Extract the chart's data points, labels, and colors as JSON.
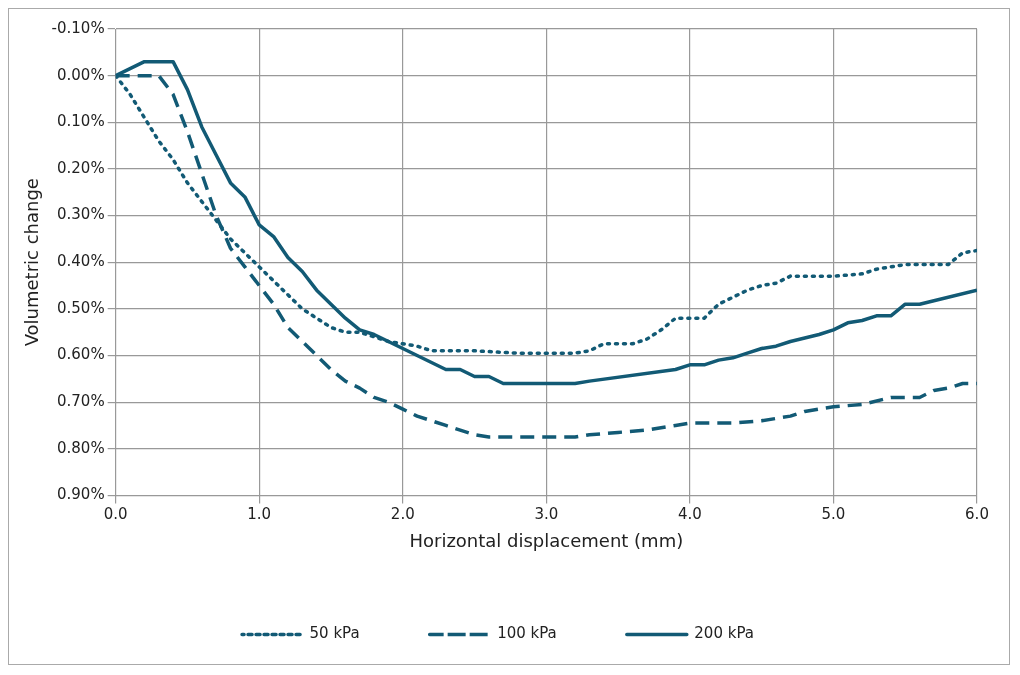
{
  "chart_data": {
    "type": "line",
    "xlabel": "Horizontal displacement (mm)",
    "ylabel": "Volumetric change",
    "xlim": [
      0,
      6
    ],
    "xticks": [
      {
        "value": 0,
        "label": "0.0"
      },
      {
        "value": 1,
        "label": "1.0"
      },
      {
        "value": 2,
        "label": "2.0"
      },
      {
        "value": 3,
        "label": "3.0"
      },
      {
        "value": 4,
        "label": "4.0"
      },
      {
        "value": 5,
        "label": "5.0"
      },
      {
        "value": 6,
        "label": "6.0"
      }
    ],
    "ylim": [
      0.9,
      -0.1
    ],
    "yticks": [
      {
        "value": -0.1,
        "label": "-0.10%"
      },
      {
        "value": 0,
        "label": "0.00%"
      },
      {
        "value": 0.1,
        "label": "0.10%"
      },
      {
        "value": 0.2,
        "label": "0.20%"
      },
      {
        "value": 0.3,
        "label": "0.30%"
      },
      {
        "value": 0.4,
        "label": "0.40%"
      },
      {
        "value": 0.5,
        "label": "0.50%"
      },
      {
        "value": 0.6,
        "label": "0.60%"
      },
      {
        "value": 0.7,
        "label": "0.70%"
      },
      {
        "value": 0.8,
        "label": "0.80%"
      },
      {
        "value": 0.9,
        "label": "0.90%"
      }
    ],
    "grid": true,
    "legend": "bottom",
    "marker": "none",
    "series": [
      {
        "name": "50 kPa",
        "color": "#125a75",
        "line_style": "dotted",
        "x": [
          0,
          0.1,
          0.2,
          0.3,
          0.4,
          0.5,
          0.6,
          0.7,
          0.8,
          0.9,
          1.0,
          1.1,
          1.2,
          1.3,
          1.4,
          1.5,
          1.6,
          1.7,
          1.8,
          1.9,
          2.0,
          2.1,
          2.2,
          2.5,
          2.8,
          3.0,
          3.2,
          3.3,
          3.4,
          3.6,
          3.7,
          3.8,
          3.9,
          4.0,
          4.1,
          4.2,
          4.3,
          4.4,
          4.5,
          4.6,
          4.7,
          5.0,
          5.2,
          5.3,
          5.4,
          5.5,
          5.8,
          5.9,
          6.0
        ],
        "values": [
          0,
          0.04,
          0.09,
          0.14,
          0.18,
          0.23,
          0.27,
          0.31,
          0.35,
          0.38,
          0.41,
          0.44,
          0.47,
          0.5,
          0.52,
          0.54,
          0.55,
          0.55,
          0.56,
          0.57,
          0.575,
          0.58,
          0.59,
          0.59,
          0.595,
          0.595,
          0.595,
          0.59,
          0.575,
          0.575,
          0.565,
          0.545,
          0.52,
          0.52,
          0.52,
          0.49,
          0.475,
          0.46,
          0.45,
          0.445,
          0.43,
          0.43,
          0.425,
          0.415,
          0.41,
          0.405,
          0.405,
          0.38,
          0.375
        ]
      },
      {
        "name": "100 kPa",
        "color": "#125a75",
        "line_style": "dashed",
        "x": [
          0,
          0.3,
          0.4,
          0.5,
          0.6,
          0.7,
          0.8,
          0.9,
          1.0,
          1.1,
          1.2,
          1.3,
          1.4,
          1.5,
          1.6,
          1.7,
          1.8,
          1.9,
          2.0,
          2.1,
          2.2,
          2.3,
          2.4,
          2.5,
          2.6,
          2.7,
          2.8,
          3.2,
          3.3,
          3.5,
          3.7,
          3.9,
          4.0,
          4.3,
          4.5,
          4.7,
          4.8,
          5.0,
          5.2,
          5.4,
          5.6,
          5.7,
          5.8,
          5.9,
          6.0
        ],
        "values": [
          0,
          0,
          0.04,
          0.12,
          0.21,
          0.3,
          0.37,
          0.41,
          0.45,
          0.49,
          0.54,
          0.57,
          0.6,
          0.63,
          0.655,
          0.67,
          0.69,
          0.7,
          0.715,
          0.73,
          0.74,
          0.75,
          0.76,
          0.77,
          0.775,
          0.775,
          0.775,
          0.775,
          0.77,
          0.765,
          0.76,
          0.75,
          0.745,
          0.745,
          0.74,
          0.73,
          0.72,
          0.71,
          0.705,
          0.69,
          0.69,
          0.675,
          0.67,
          0.66,
          0.66
        ]
      },
      {
        "name": "200 kPa",
        "color": "#125a75",
        "line_style": "solid",
        "x": [
          0,
          0.2,
          0.4,
          0.5,
          0.6,
          0.7,
          0.8,
          0.9,
          1.0,
          1.1,
          1.2,
          1.3,
          1.4,
          1.5,
          1.6,
          1.7,
          1.8,
          1.9,
          2.0,
          2.1,
          2.2,
          2.3,
          2.4,
          2.5,
          2.6,
          2.7,
          3.2,
          3.3,
          3.9,
          4.0,
          4.1,
          4.2,
          4.3,
          4.4,
          4.5,
          4.6,
          4.7,
          4.9,
          5.0,
          5.1,
          5.2,
          5.3,
          5.4,
          5.5,
          5.6,
          6.0
        ],
        "values": [
          0,
          -0.03,
          -0.03,
          0.03,
          0.11,
          0.17,
          0.23,
          0.26,
          0.32,
          0.345,
          0.39,
          0.42,
          0.46,
          0.49,
          0.52,
          0.545,
          0.555,
          0.57,
          0.585,
          0.6,
          0.615,
          0.63,
          0.63,
          0.645,
          0.645,
          0.66,
          0.66,
          0.655,
          0.63,
          0.62,
          0.62,
          0.61,
          0.605,
          0.595,
          0.585,
          0.58,
          0.57,
          0.555,
          0.545,
          0.53,
          0.525,
          0.515,
          0.515,
          0.49,
          0.49,
          0.46
        ]
      }
    ]
  }
}
